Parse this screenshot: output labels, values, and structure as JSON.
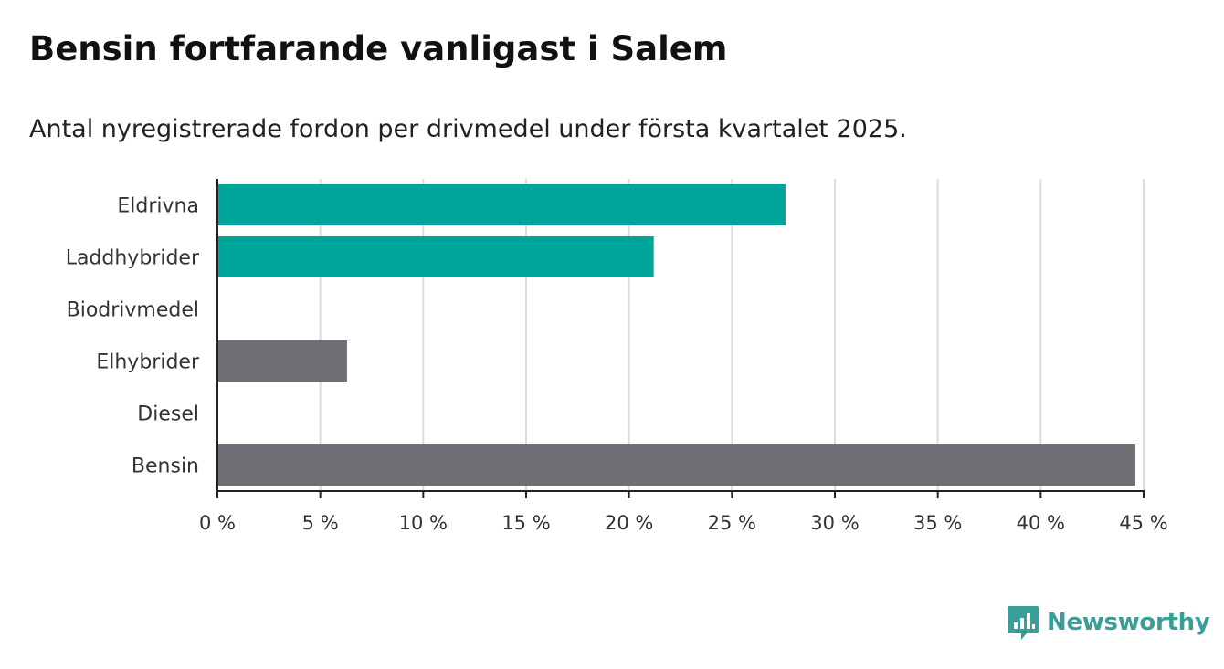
{
  "header": {
    "title": "Bensin fortfarande vanligast i Salem",
    "subtitle": "Antal nyregistrerade fordon per drivmedel under första kvartalet 2025."
  },
  "brand": {
    "name": "Newsworthy",
    "icon": "newsworthy-logo-icon",
    "color": "#3a9e98"
  },
  "chart_data": {
    "type": "bar",
    "orientation": "horizontal",
    "categories": [
      "Eldrivna",
      "Laddhybrider",
      "Biodrivmedel",
      "Elhybrider",
      "Diesel",
      "Bensin"
    ],
    "values": [
      27.6,
      21.2,
      0,
      6.3,
      0,
      44.6
    ],
    "colors": [
      "#00a599",
      "#00a599",
      "#00a599",
      "#6f6e74",
      "#6f6e74",
      "#6f6e74"
    ],
    "xlim": [
      0,
      45
    ],
    "xticks": [
      0,
      5,
      10,
      15,
      20,
      25,
      30,
      35,
      40,
      45
    ],
    "tick_labels": [
      "0 %",
      "5 %",
      "10 %",
      "15 %",
      "20 %",
      "25 %",
      "30 %",
      "35 %",
      "40 %",
      "45 %"
    ],
    "grid": "vertical",
    "legend": "none"
  }
}
